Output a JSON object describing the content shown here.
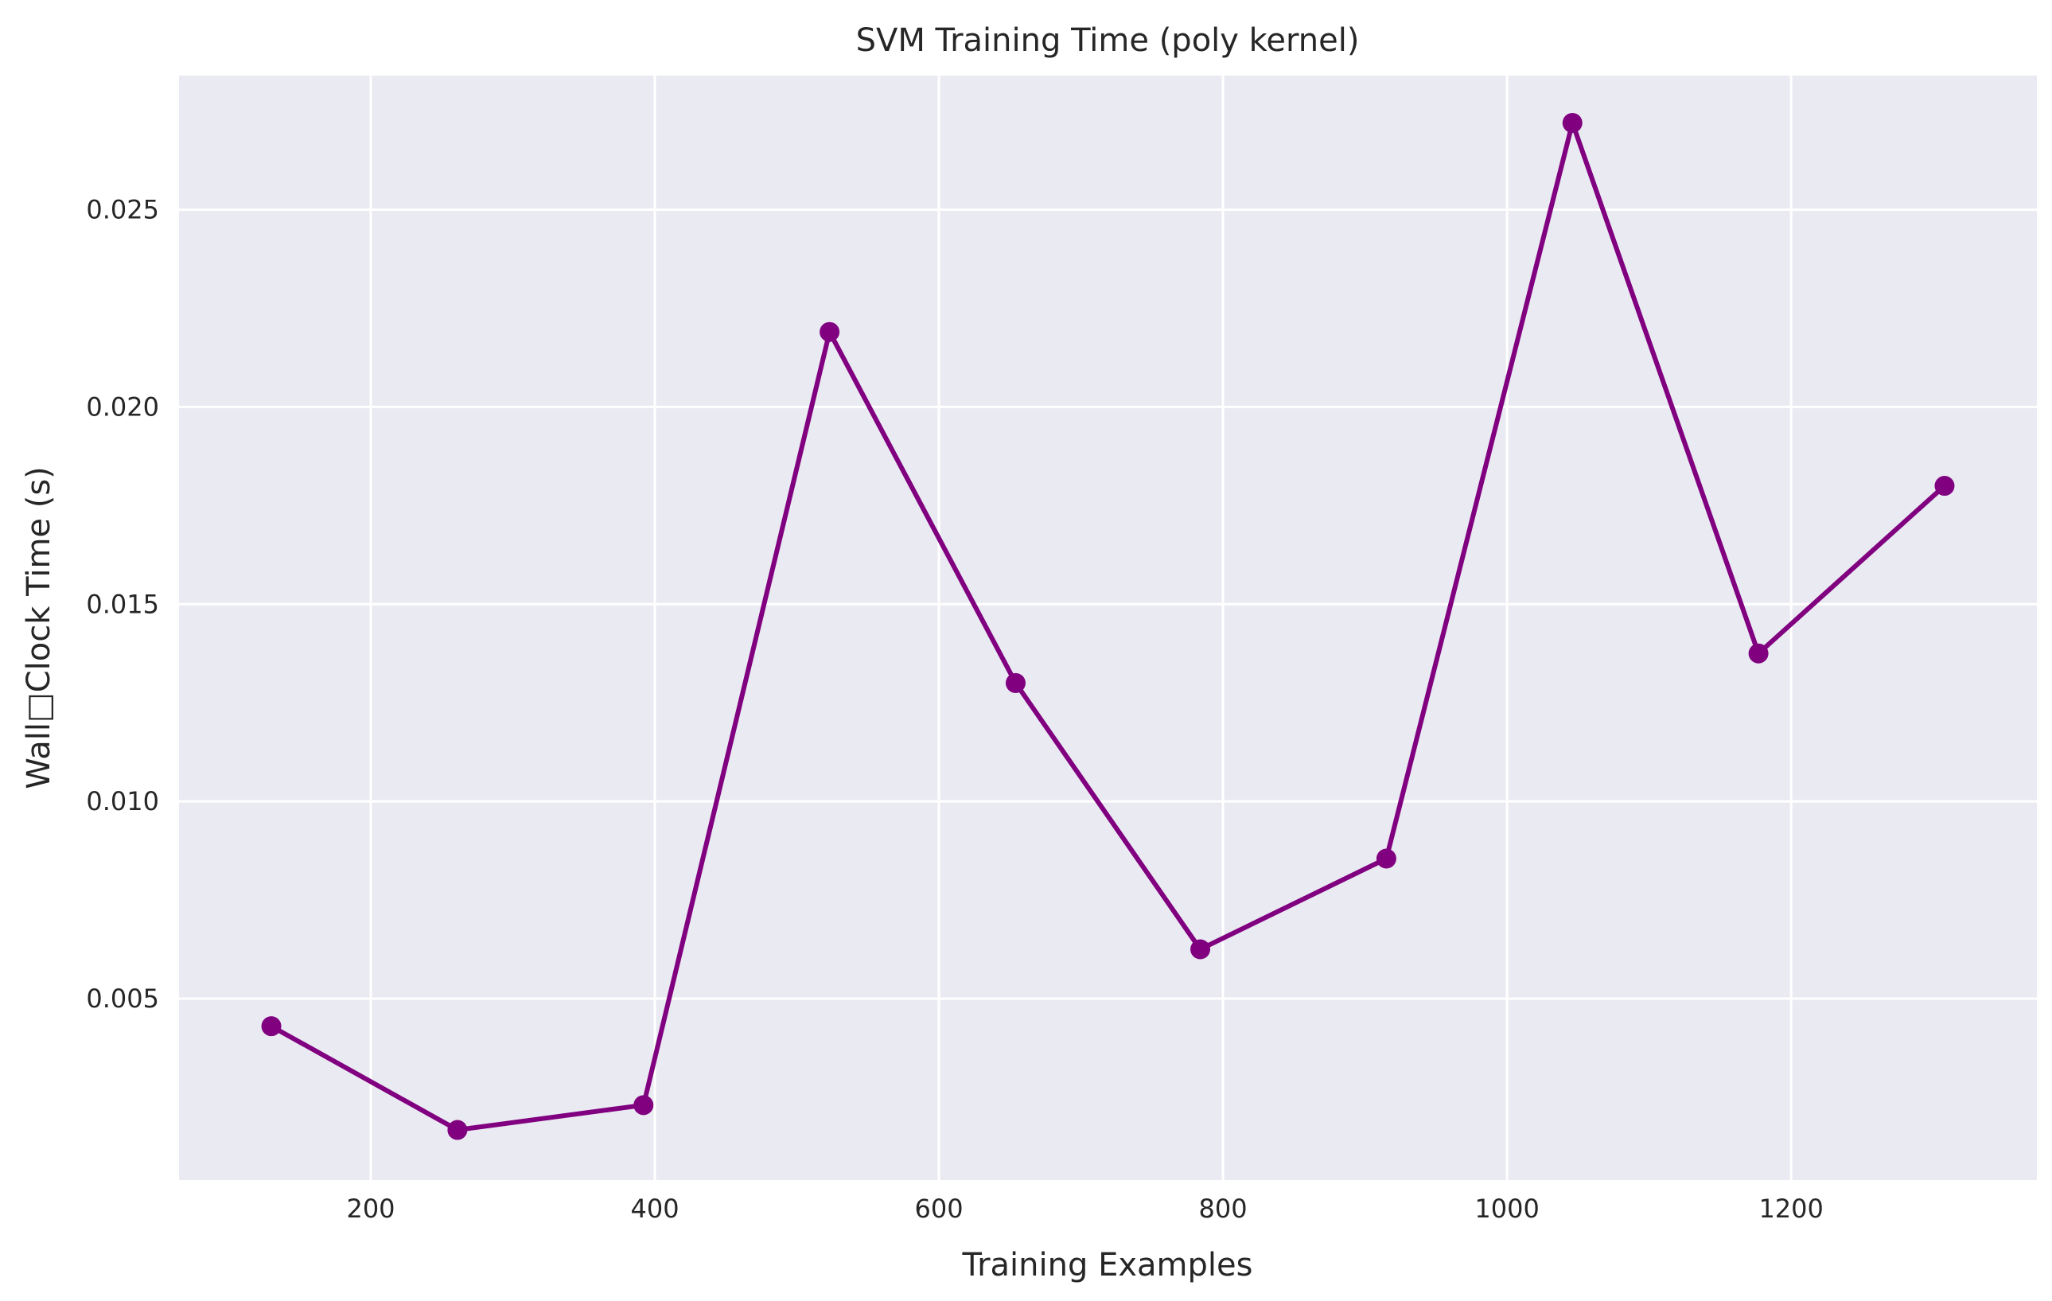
{
  "chart_data": {
    "type": "line",
    "title": "SVM Training Time (poly kernel)",
    "xlabel": "Training Examples",
    "ylabel": "Wall□Clock Time (s)",
    "x": [
      130,
      261,
      392,
      523,
      654,
      784,
      915,
      1046,
      1177,
      1308
    ],
    "series": [
      {
        "values": [
          0.0043,
          0.00167,
          0.0023,
          0.0219,
          0.013,
          0.00625,
          0.00855,
          0.0272,
          0.01375,
          0.018
        ],
        "color": "#800080",
        "marker": "circle"
      }
    ],
    "xticks": [
      200,
      400,
      600,
      800,
      1000,
      1200
    ],
    "xtick_labels": [
      "200",
      "400",
      "600",
      "800",
      "1000",
      "1200"
    ],
    "yticks": [
      0.005,
      0.01,
      0.015,
      0.02,
      0.025
    ],
    "ytick_labels": [
      "0.005",
      "0.010",
      "0.015",
      "0.020",
      "0.025"
    ],
    "xlim": [
      65,
      1373
    ],
    "ylim": [
      0.0004,
      0.0284
    ],
    "grid": true,
    "colors": {
      "plot_background": "#eaeaf2",
      "grid": "#ffffff",
      "line": "#800080",
      "text": "#262626"
    }
  }
}
